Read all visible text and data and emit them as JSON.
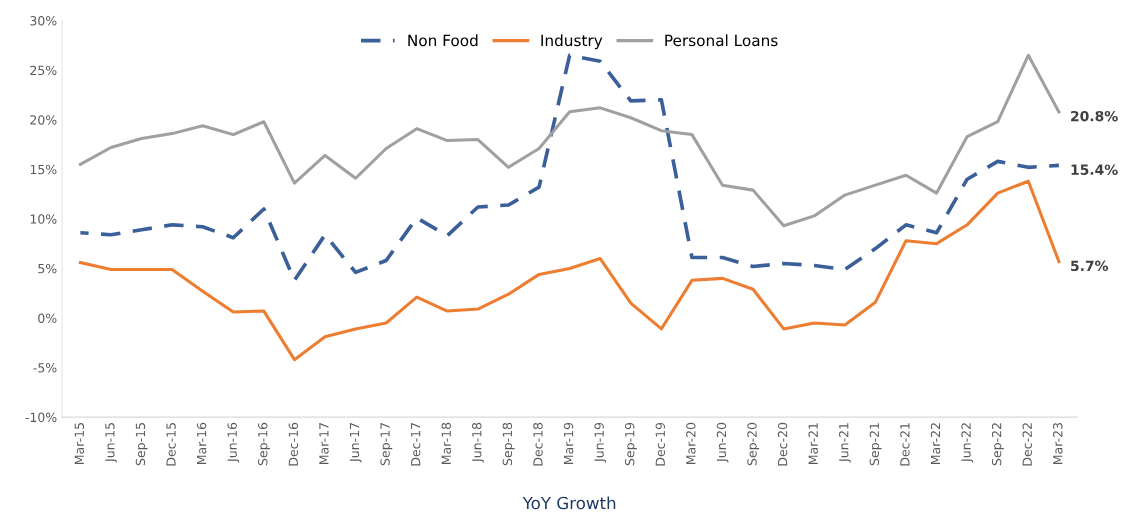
{
  "chart_data": {
    "type": "line",
    "xlabel": "YoY Growth",
    "categories": [
      "Mar-15",
      "Jun-15",
      "Sep-15",
      "Dec-15",
      "Mar-16",
      "Jun-16",
      "Sep-16",
      "Dec-16",
      "Mar-17",
      "Jun-17",
      "Sep-17",
      "Dec-17",
      "Mar-18",
      "Jun-18",
      "Sep-18",
      "Dec-18",
      "Mar-19",
      "Jun-19",
      "Sep-19",
      "Dec-19",
      "Mar-20",
      "Jun-20",
      "Sep-20",
      "Dec-20",
      "Mar-21",
      "Jun-21",
      "Sep-21",
      "Dec-21",
      "Mar-22",
      "Jun-22",
      "Sep-22",
      "Dec-22",
      "Mar-23"
    ],
    "series": [
      {
        "name": "Non Food",
        "color": "#3b5f99",
        "line_style": "dashed",
        "values": [
          8.6,
          8.4,
          8.9,
          9.4,
          9.2,
          8.1,
          11.0,
          3.8,
          8.4,
          4.6,
          5.8,
          10.1,
          8.3,
          11.2,
          11.4,
          13.2,
          26.5,
          25.9,
          21.9,
          22.0,
          6.1,
          6.1,
          5.2,
          5.5,
          5.3,
          4.9,
          7.0,
          9.4,
          8.6,
          14.0,
          15.8,
          15.2,
          15.4
        ],
        "value_labels": [
          null,
          null,
          null,
          null,
          null,
          null,
          null,
          null,
          null,
          null,
          null,
          null,
          null,
          null,
          null,
          null,
          null,
          null,
          null,
          null,
          null,
          null,
          null,
          null,
          null,
          null,
          null,
          null,
          null,
          null,
          null,
          null,
          "15.4%"
        ]
      },
      {
        "name": "Industry",
        "color": "#ed7d31",
        "line_style": "solid",
        "values": [
          5.6,
          4.9,
          4.9,
          4.9,
          2.7,
          0.6,
          0.7,
          -4.2,
          -1.9,
          -1.1,
          -0.5,
          2.1,
          0.7,
          0.9,
          2.4,
          4.4,
          5.0,
          6.0,
          1.5,
          -1.1,
          3.8,
          4.0,
          2.9,
          -1.1,
          -0.5,
          -0.7,
          1.6,
          7.8,
          7.5,
          9.4,
          12.6,
          13.8,
          5.7
        ],
        "value_labels": [
          null,
          null,
          null,
          null,
          null,
          null,
          null,
          null,
          null,
          null,
          null,
          null,
          null,
          null,
          null,
          null,
          null,
          null,
          null,
          null,
          null,
          null,
          null,
          null,
          null,
          null,
          null,
          null,
          null,
          null,
          null,
          null,
          "5.7%"
        ]
      },
      {
        "name": "Personal Loans",
        "color": "#a0a0a0",
        "line_style": "solid",
        "values": [
          15.5,
          17.2,
          18.1,
          18.6,
          19.4,
          18.5,
          19.8,
          13.6,
          16.4,
          14.1,
          17.1,
          19.1,
          17.9,
          18.0,
          15.2,
          17.1,
          20.8,
          21.2,
          20.2,
          18.9,
          18.5,
          13.4,
          12.9,
          9.3,
          10.3,
          12.4,
          13.4,
          14.4,
          12.6,
          18.3,
          19.8,
          26.5,
          20.8
        ],
        "value_labels": [
          null,
          null,
          null,
          null,
          null,
          null,
          null,
          null,
          null,
          null,
          null,
          null,
          null,
          null,
          null,
          null,
          null,
          null,
          null,
          null,
          null,
          null,
          null,
          null,
          null,
          null,
          null,
          null,
          null,
          null,
          null,
          null,
          "20.8%"
        ]
      }
    ],
    "ylim": [
      -10,
      30
    ],
    "yticks": [
      {
        "value": -10,
        "label": "-10%"
      },
      {
        "value": -5,
        "label": "-5%"
      },
      {
        "value": 0,
        "label": "0%"
      },
      {
        "value": 5,
        "label": "5%"
      },
      {
        "value": 10,
        "label": "10%"
      },
      {
        "value": 15,
        "label": "15%"
      },
      {
        "value": 20,
        "label": "20%"
      },
      {
        "value": 25,
        "label": "25%"
      },
      {
        "value": 30,
        "label": "30%"
      }
    ],
    "legend": "top",
    "grid": false,
    "marker": "none"
  }
}
